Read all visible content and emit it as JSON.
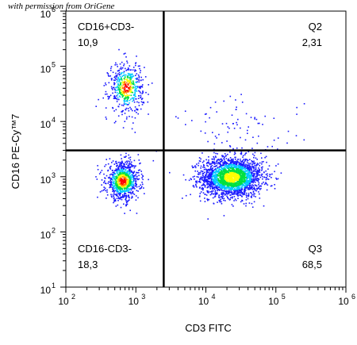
{
  "watermark": "with permission from OriGene",
  "chart_data": {
    "type": "scatter",
    "plot": "flow cytometry density dot plot",
    "xlabel": "CD3 FITC",
    "ylabel": "CD16 PE-Cy™7",
    "xscale": "log",
    "yscale": "log",
    "xlim": [
      100,
      1000000
    ],
    "ylim": [
      10,
      1000000
    ],
    "x_ticks": [
      {
        "value": 100,
        "base": "10",
        "exp": "2"
      },
      {
        "value": 1000,
        "base": "10",
        "exp": "3"
      },
      {
        "value": 10000,
        "base": "10",
        "exp": "4"
      },
      {
        "value": 100000,
        "base": "10",
        "exp": "5"
      },
      {
        "value": 1000000,
        "base": "10",
        "exp": "6"
      }
    ],
    "y_ticks": [
      {
        "value": 10,
        "base": "10",
        "exp": "1"
      },
      {
        "value": 100,
        "base": "10",
        "exp": "2"
      },
      {
        "value": 1000,
        "base": "10",
        "exp": "3"
      },
      {
        "value": 10000,
        "base": "10",
        "exp": "4"
      },
      {
        "value": 100000,
        "base": "10",
        "exp": "5"
      },
      {
        "value": 1000000,
        "base": "10",
        "exp": "6"
      }
    ],
    "gates": {
      "x": 2500,
      "y": 3000
    },
    "quadrants": [
      {
        "position": "top-left",
        "name": "CD16+CD3-",
        "value": "10,9"
      },
      {
        "position": "top-right",
        "name": "Q2",
        "value": "2,31"
      },
      {
        "position": "bottom-left",
        "name": "CD16-CD3-",
        "value": "18,3"
      },
      {
        "position": "bottom-right",
        "name": "Q3",
        "value": "68,5"
      }
    ],
    "populations": [
      {
        "quadrant": "bottom-right",
        "center": [
          23000,
          1000
        ],
        "spread_log": [
          0.22,
          0.18
        ],
        "events": 2300
      },
      {
        "quadrant": "bottom-left",
        "center": [
          640,
          850
        ],
        "spread_log": [
          0.12,
          0.17
        ],
        "events": 900
      },
      {
        "quadrant": "top-left",
        "center": [
          720,
          42000
        ],
        "spread_log": [
          0.12,
          0.23
        ],
        "events": 520
      },
      {
        "quadrant": "top-right",
        "center": [
          30000,
          7000
        ],
        "spread_log": [
          0.45,
          0.3
        ],
        "events": 90
      }
    ],
    "density_colors": [
      "#1a1aff",
      "#00c8ff",
      "#00e040",
      "#ffff00",
      "#ff8000",
      "#ff0000"
    ],
    "grid": false,
    "legend": "none"
  }
}
